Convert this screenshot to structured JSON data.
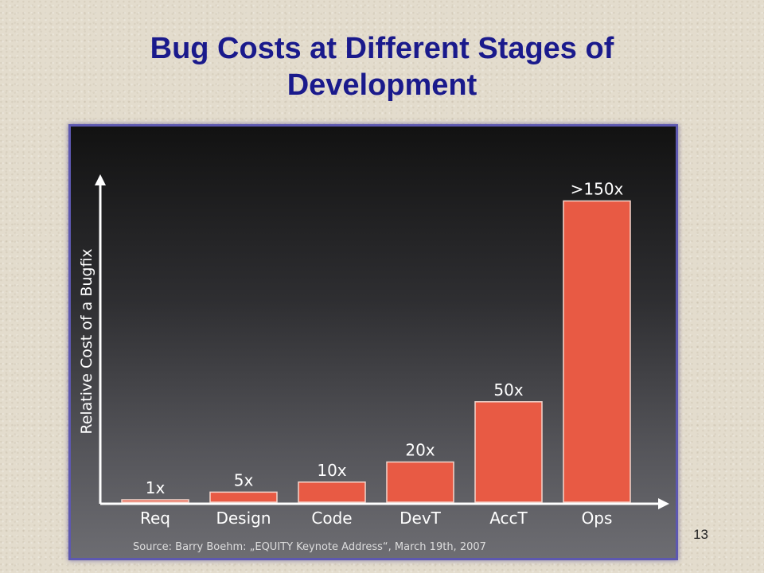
{
  "slide": {
    "title_lines": [
      "Bug Costs at Different Stages of",
      "Development"
    ],
    "page_number": "13"
  },
  "chart_data": {
    "type": "bar",
    "categories": [
      "Req",
      "Design",
      "Code",
      "DevT",
      "AccT",
      "Ops"
    ],
    "values": [
      1,
      5,
      10,
      20,
      50,
      150
    ],
    "data_labels": [
      "1x",
      "5x",
      "10x",
      "20x",
      "50x",
      ">150x"
    ],
    "ylabel": "Relative Cost of a Bugfix",
    "xlabel": "",
    "ylim": [
      0,
      172
    ],
    "grid": false,
    "source": "Source: Barry Boehm: „EQUITY Keynote Address“, March 19th, 2007",
    "colors": {
      "bar_fill": "#e85a44",
      "bar_stroke": "#f4d5cc",
      "axis": "#ffffff",
      "text": "#ffffff",
      "source_text": "#dddddd"
    }
  }
}
